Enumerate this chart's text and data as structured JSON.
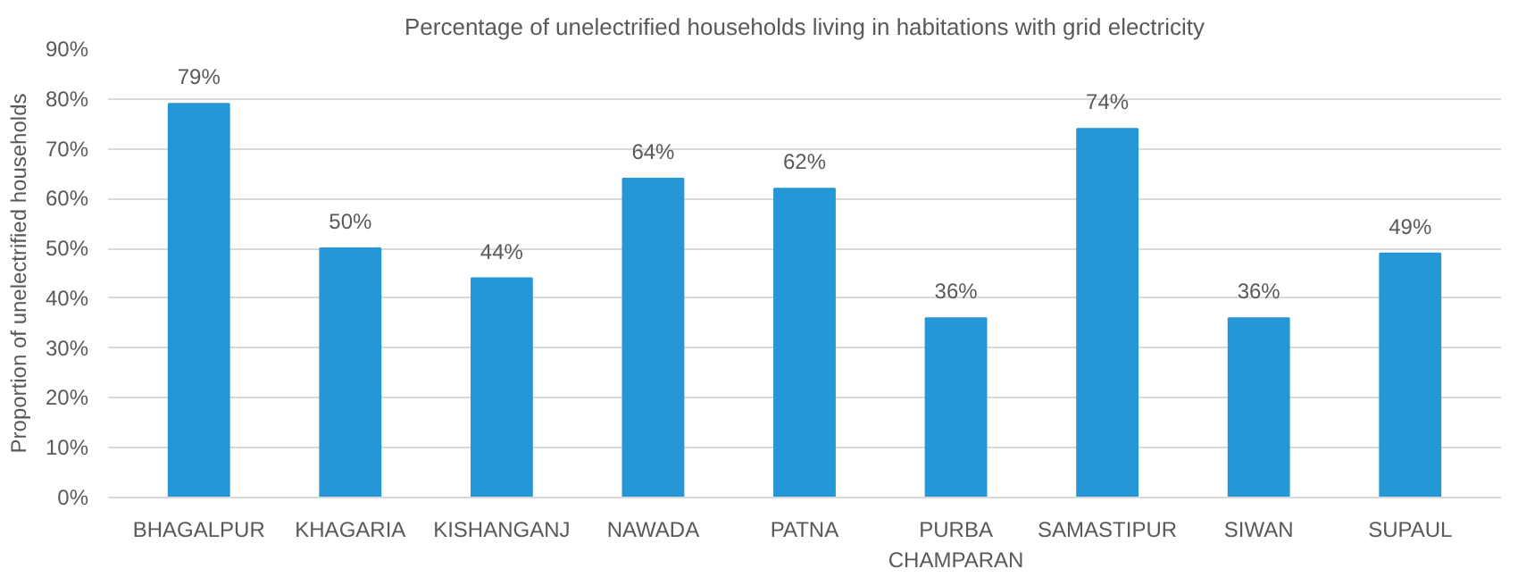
{
  "chart_data": {
    "type": "bar",
    "title": "Percentage of unelectrified households living in habitations with grid electricity",
    "ylabel": "Proportion of unelectrified households",
    "categories": [
      "BHAGALPUR",
      "KHAGARIA",
      "KISHANGANJ",
      "NAWADA",
      "PATNA",
      "PURBA CHAMPARAN",
      "SAMASTIPUR",
      "SIWAN",
      "SUPAUL"
    ],
    "values": [
      79,
      50,
      44,
      64,
      62,
      36,
      74,
      36,
      49
    ],
    "value_labels": [
      "79%",
      "50%",
      "44%",
      "64%",
      "62%",
      "36%",
      "74%",
      "36%",
      "49%"
    ],
    "color": "#2596d6",
    "ylim": [
      0,
      90
    ],
    "yticks": [
      {
        "value": 0,
        "label": "0%"
      },
      {
        "value": 10,
        "label": "10%"
      },
      {
        "value": 20,
        "label": "20%"
      },
      {
        "value": 30,
        "label": "30%"
      },
      {
        "value": 40,
        "label": "40%"
      },
      {
        "value": 50,
        "label": "50%"
      },
      {
        "value": 60,
        "label": "60%"
      },
      {
        "value": 70,
        "label": "70%"
      },
      {
        "value": 80,
        "label": "80%"
      },
      {
        "value": 90,
        "label": "90%"
      }
    ],
    "grid": "y"
  }
}
